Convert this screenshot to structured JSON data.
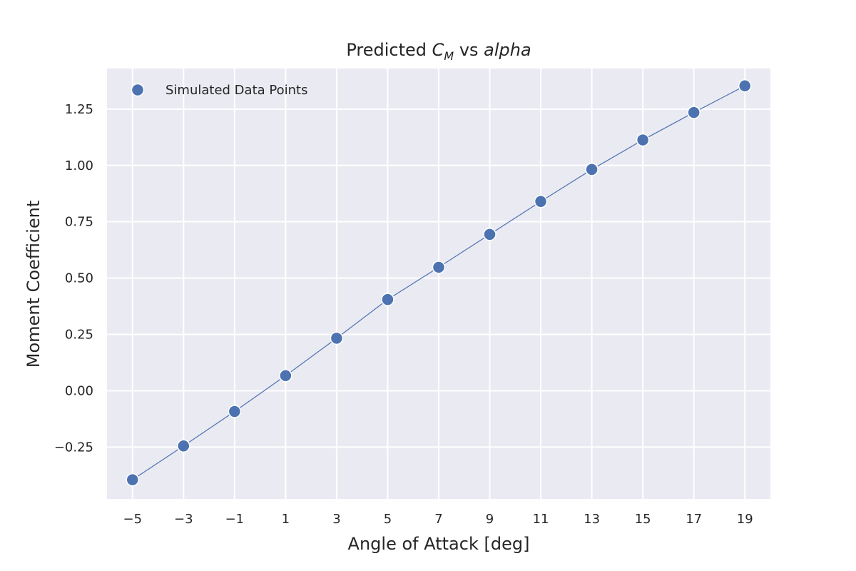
{
  "chart_data": {
    "type": "scatter",
    "title": {
      "prefix": "Predicted ",
      "symbol": "C",
      "subscript": "M",
      "middle": " vs ",
      "variable": "alpha"
    },
    "xlabel": "Angle of Attack [deg]",
    "ylabel": "Moment Coefficient",
    "x_ticks": [
      -5,
      -3,
      -1,
      1,
      3,
      5,
      7,
      9,
      11,
      13,
      15,
      17,
      19
    ],
    "y_ticks": [
      -0.25,
      0.0,
      0.25,
      0.5,
      0.75,
      1.0,
      1.25
    ],
    "xlim": [
      -6,
      20
    ],
    "ylim": [
      -0.48,
      1.43
    ],
    "grid": true,
    "legend_position": "top-left",
    "series": [
      {
        "name": "Simulated Data Points",
        "color": "#4c72b0",
        "connected": true,
        "x": [
          -5,
          -3,
          -1,
          1,
          3,
          5,
          7,
          9,
          11,
          13,
          15,
          17,
          19
        ],
        "y": [
          -0.395,
          -0.245,
          -0.092,
          0.067,
          0.233,
          0.405,
          0.548,
          0.694,
          0.84,
          0.982,
          1.113,
          1.235,
          1.353
        ]
      }
    ]
  }
}
